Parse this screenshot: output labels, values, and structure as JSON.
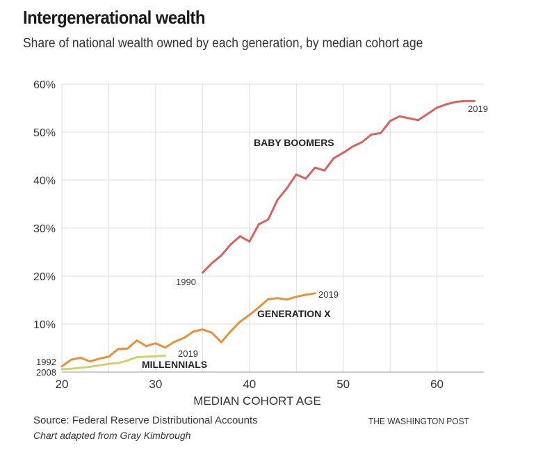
{
  "title": "Intergenerational wealth",
  "subtitle": "Share of national wealth owned by each generation, by median cohort age",
  "source": "Source: Federal Reserve Distributional Accounts",
  "credit": "Chart adapted from Gray Kimbrough",
  "brand": "THE WASHINGTON POST",
  "chart_data": {
    "type": "line",
    "title": "Intergenerational wealth",
    "xlabel": "MEDIAN COHORT AGE",
    "ylabel": "",
    "xlim": [
      20,
      65
    ],
    "ylim": [
      0,
      60
    ],
    "grid": true,
    "x_ticks": [
      20,
      30,
      40,
      50,
      60
    ],
    "x_tick_labels": [
      "20",
      "30",
      "40",
      "50",
      "60"
    ],
    "x_grid": [
      20,
      25,
      30,
      35,
      40,
      45,
      50,
      55,
      60
    ],
    "y_ticks": [
      0,
      10,
      20,
      30,
      40,
      50,
      60
    ],
    "y_tick_labels": [
      "",
      "10%",
      "20%",
      "30%",
      "40%",
      "50%",
      "60%"
    ],
    "series": [
      {
        "name": "BABY BOOMERS",
        "color": "#d9625d",
        "start_label": "1990",
        "end_label": "2019",
        "x": [
          35,
          36,
          37,
          38,
          39,
          40,
          41,
          42,
          43,
          44,
          45,
          46,
          47,
          48,
          49,
          50,
          51,
          52,
          53,
          54,
          55,
          56,
          57,
          58,
          59,
          60,
          61,
          62,
          63,
          64
        ],
        "values": [
          20.7,
          22.7,
          24.3,
          26.6,
          28.3,
          27.2,
          30.8,
          31.8,
          35.9,
          38.3,
          41.2,
          40.3,
          42.6,
          42.0,
          44.6,
          45.7,
          47.0,
          47.9,
          49.5,
          49.8,
          52.3,
          53.3,
          52.9,
          52.5,
          53.8,
          55.1,
          55.8,
          56.3,
          56.5,
          56.5
        ]
      },
      {
        "name": "GENERATION X",
        "color": "#e8903c",
        "start_label": "1992",
        "end_label": "2019",
        "x": [
          20,
          21,
          22,
          23,
          24,
          25,
          26,
          27,
          28,
          29,
          30,
          31,
          32,
          33,
          34,
          35,
          36,
          37,
          38,
          39,
          40,
          41,
          42,
          43,
          44,
          45,
          46,
          47
        ],
        "values": [
          1.2,
          2.6,
          3.0,
          2.2,
          2.8,
          3.2,
          4.8,
          4.9,
          6.6,
          5.4,
          6.0,
          5.1,
          6.3,
          7.1,
          8.4,
          8.9,
          8.2,
          6.2,
          8.5,
          10.5,
          11.9,
          13.5,
          15.2,
          15.4,
          15.1,
          15.7,
          16.1,
          16.4
        ]
      },
      {
        "name": "MILLENNIALS",
        "color": "#cdd368",
        "start_label": "2008",
        "end_label": "2019",
        "x": [
          20,
          21,
          22,
          23,
          24,
          25,
          26,
          27,
          28,
          29,
          30,
          31
        ],
        "values": [
          0.6,
          0.7,
          0.9,
          1.1,
          1.4,
          1.7,
          1.9,
          2.4,
          3.1,
          3.2,
          3.3,
          3.4
        ]
      }
    ]
  }
}
